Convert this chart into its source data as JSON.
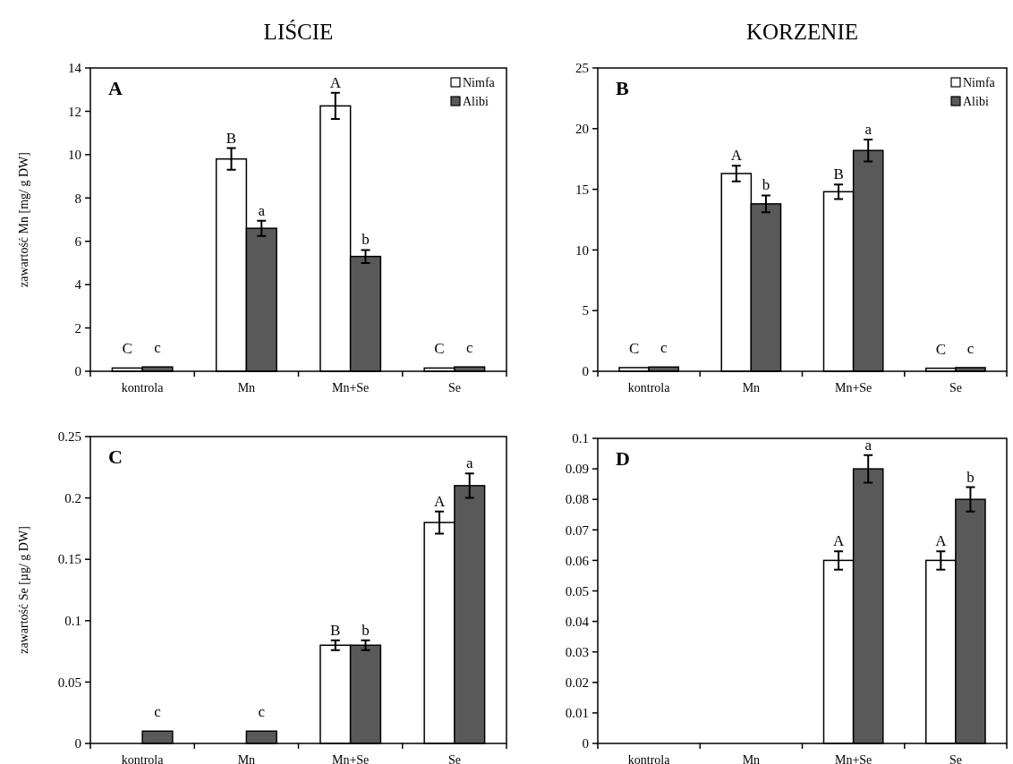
{
  "chart_data": [
    {
      "type": "bar",
      "title": "LIŚCIE",
      "ylabel": "zawartość Mn [mg/ g DW]",
      "categories": [
        "kontrola",
        "Mn",
        "Mn+Se",
        "Se"
      ],
      "legend": "top right",
      "ylim": [
        0,
        14
      ],
      "yticks": [
        0,
        2,
        4,
        6,
        8,
        10,
        12,
        14
      ],
      "grid": false,
      "series": [
        {
          "name": "Nimfa",
          "color": "#ffffff",
          "values": [
            0.15,
            9.8,
            12.25,
            0.15
          ],
          "errors": [
            null,
            0.5,
            0.6,
            null
          ]
        },
        {
          "name": "Alibi",
          "color": "#595959",
          "values": [
            0.2,
            6.6,
            5.3,
            0.2
          ],
          "errors": [
            null,
            0.35,
            0.3,
            null
          ]
        }
      ],
      "annotations": [
        "A",
        {
          "text": "C",
          "x": "kontrola",
          "y": 0.15
        },
        {
          "text": "c",
          "x": "kontrola",
          "y": 0.2
        },
        {
          "text": "B",
          "x": "Mn",
          "y": 9.8
        },
        {
          "text": "a",
          "x": "Mn",
          "y": 6.6
        },
        {
          "text": "A",
          "x": "Mn+Se",
          "y": 12.25
        },
        {
          "text": "b",
          "x": "Mn+Se",
          "y": 5.3
        },
        {
          "text": "C",
          "x": "Se",
          "y": 0.15
        },
        {
          "text": "c",
          "x": "Se",
          "y": 0.2
        }
      ]
    },
    {
      "type": "bar",
      "title": "KORZENIE",
      "categories": [
        "kontrola",
        "Mn",
        "Mn+Se",
        "Se"
      ],
      "legend": "top right",
      "ylim": [
        0,
        25
      ],
      "yticks": [
        0,
        5,
        10,
        15,
        20,
        25
      ],
      "grid": false,
      "series": [
        {
          "name": "Nimfa",
          "color": "#ffffff",
          "values": [
            0.3,
            16.3,
            14.8,
            0.25
          ],
          "errors": [
            null,
            0.65,
            0.6,
            null
          ]
        },
        {
          "name": "Alibi",
          "color": "#595959",
          "values": [
            0.35,
            13.8,
            18.2,
            0.3
          ],
          "errors": [
            null,
            0.7,
            0.9,
            null
          ]
        }
      ],
      "annotations": [
        "B",
        {
          "text": "C",
          "x": "kontrola",
          "y": 0.3
        },
        {
          "text": "c",
          "x": "kontrola",
          "y": 0.35
        },
        {
          "text": "A",
          "x": "Mn",
          "y": 16.3
        },
        {
          "text": "b",
          "x": "Mn",
          "y": 13.8
        },
        {
          "text": "B",
          "x": "Mn+Se",
          "y": 14.8
        },
        {
          "text": "a",
          "x": "Mn+Se",
          "y": 18.2
        },
        {
          "text": "C",
          "x": "Se",
          "y": 0.25
        },
        {
          "text": "c",
          "x": "Se",
          "y": 0.3
        }
      ]
    },
    {
      "type": "bar",
      "ylabel": "zawartość Se [µg/ g DW]",
      "categories": [
        "kontrola",
        "Mn",
        "Mn+Se",
        "Se"
      ],
      "ylim": [
        0,
        0.25
      ],
      "yticks": [
        0,
        0.05,
        0.1,
        0.15,
        0.2,
        0.25
      ],
      "grid": false,
      "series": [
        {
          "color": "#ffffff",
          "values": [
            0,
            0,
            0.08,
            0.18
          ],
          "errors": [
            null,
            null,
            0.004,
            0.009
          ]
        },
        {
          "color": "#595959",
          "values": [
            0.01,
            0.01,
            0.08,
            0.21
          ],
          "errors": [
            null,
            null,
            0.004,
            0.01
          ]
        }
      ],
      "annotations": [
        "C",
        {
          "text": "c",
          "x": "kontrola",
          "y": 0.01
        },
        {
          "text": "c",
          "x": "Mn",
          "y": 0.01
        },
        {
          "text": "B",
          "x": "Mn+Se",
          "y": 0.08
        },
        {
          "text": "b",
          "x": "Mn+Se",
          "y": 0.08
        },
        {
          "text": "A",
          "x": "Se",
          "y": 0.18
        },
        {
          "text": "a",
          "x": "Se",
          "y": 0.21
        }
      ]
    },
    {
      "type": "bar",
      "categories": [
        "kontrola",
        "Mn",
        "Mn+Se",
        "Se"
      ],
      "ylim": [
        0,
        0.1
      ],
      "yticks": [
        0,
        0.01,
        0.02,
        0.03,
        0.04,
        0.05,
        0.06,
        0.07,
        0.08,
        0.09,
        0.1
      ],
      "grid": false,
      "series": [
        {
          "color": "#ffffff",
          "values": [
            0,
            0,
            0.06,
            0.06
          ],
          "errors": [
            null,
            null,
            0.003,
            0.003
          ]
        },
        {
          "color": "#595959",
          "values": [
            0,
            0,
            0.09,
            0.08
          ],
          "errors": [
            null,
            null,
            0.0045,
            0.004
          ]
        }
      ],
      "annotations": [
        "D",
        {
          "text": "A",
          "x": "Mn+Se",
          "y": 0.06
        },
        {
          "text": "a",
          "x": "Mn+Se",
          "y": 0.09
        },
        {
          "text": "A",
          "x": "Se",
          "y": 0.06
        },
        {
          "text": "b",
          "x": "Se",
          "y": 0.08
        }
      ]
    }
  ]
}
